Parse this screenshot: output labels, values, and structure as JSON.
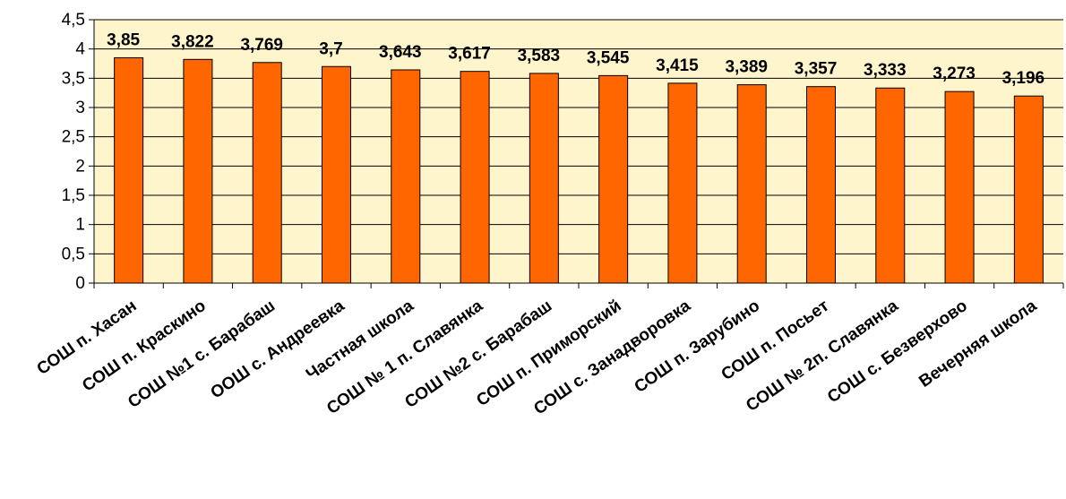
{
  "chart_data": {
    "type": "bar",
    "title": "",
    "xlabel": "",
    "ylabel": "",
    "categories": [
      "СОШ п. Хасан",
      "СОШ п. Краскино",
      "СОШ №1 с. Барабаш",
      "ООШ с. Андреевка",
      "Частная школа",
      "СОШ № 1 п. Славянка",
      "СОШ №2 с. Барабаш",
      "СОШ п. Приморский",
      "СОШ с. Занадворовка",
      "СОШ п. Зарубино",
      "СОШ п. Посьет",
      "СОШ № 2п. Славянка",
      "СОШ с. Безверхово",
      "Вечерняя школа"
    ],
    "values": [
      3.85,
      3.822,
      3.769,
      3.7,
      3.643,
      3.617,
      3.583,
      3.545,
      3.415,
      3.389,
      3.357,
      3.333,
      3.273,
      3.196
    ],
    "value_labels": [
      "3,85",
      "3,822",
      "3,769",
      "3,7",
      "3,643",
      "3,617",
      "3,583",
      "3,545",
      "3,415",
      "3,389",
      "3,357",
      "3,333",
      "3,273",
      "3,196"
    ],
    "ylim": [
      0,
      4.5
    ],
    "yticks": [
      0,
      0.5,
      1,
      1.5,
      2,
      2.5,
      3,
      3.5,
      4,
      4.5
    ],
    "ytick_labels": [
      "0",
      "0,5",
      "1",
      "1,5",
      "2",
      "2,5",
      "3",
      "3,5",
      "4",
      "4,5"
    ],
    "grid": true,
    "legend": "none",
    "colors": {
      "bar_fill": "#ff6600",
      "bar_stroke": "#000000",
      "plot_background": "#fff5cc",
      "grid": "#000000"
    }
  }
}
